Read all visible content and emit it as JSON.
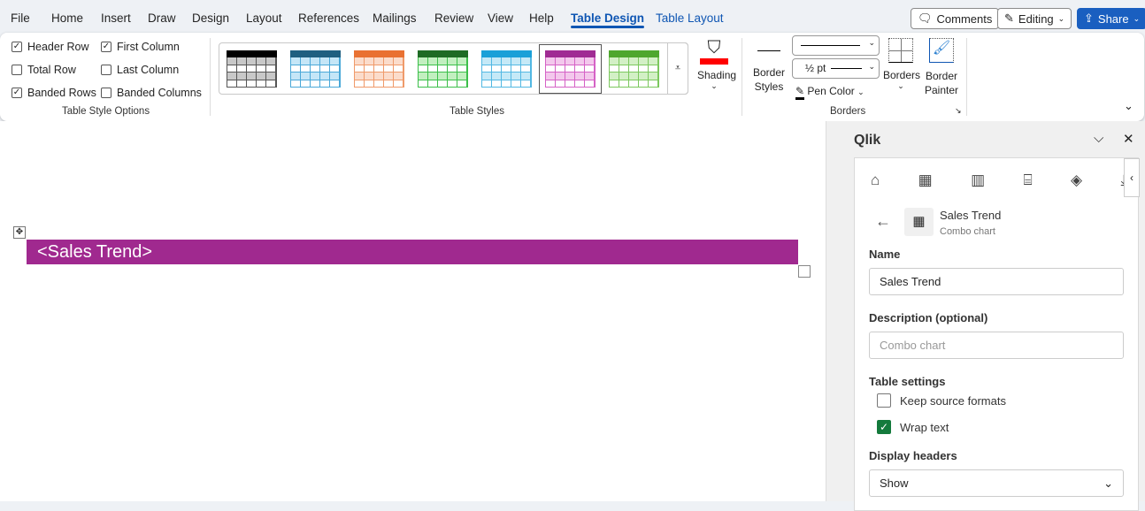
{
  "tabs": [
    "File",
    "Home",
    "Insert",
    "Draw",
    "Design",
    "Layout",
    "References",
    "Mailings",
    "Review",
    "View",
    "Help",
    "Table Design",
    "Table Layout"
  ],
  "active_tab": "Table Design",
  "top_buttons": {
    "comments": "Comments",
    "editing": "Editing",
    "share": "Share"
  },
  "colors": {
    "accent": "#0f56b3",
    "share_bg": "#1a5fc0",
    "table_header": "#a0298f",
    "qlik_check": "#147a3c"
  },
  "table_style_options": {
    "group_label": "Table Style Options",
    "options": [
      {
        "label": "Header Row",
        "checked": true
      },
      {
        "label": "First Column",
        "checked": true
      },
      {
        "label": "Total Row",
        "checked": false
      },
      {
        "label": "Last Column",
        "checked": false
      },
      {
        "label": "Banded Rows",
        "checked": true
      },
      {
        "label": "Banded Columns",
        "checked": false
      }
    ]
  },
  "table_styles": {
    "group_label": "Table Styles",
    "styles": [
      {
        "header": "#000000",
        "band": "#c8c8c8",
        "border": "#555555"
      },
      {
        "header": "#1f5f80",
        "band": "#c5e6f7",
        "border": "#4aa8d8"
      },
      {
        "header": "#e97132",
        "band": "#fbdccb",
        "border": "#ef9a6a"
      },
      {
        "header": "#1e6b24",
        "band": "#c2efc0",
        "border": "#3cbf4a"
      },
      {
        "header": "#1aa0d8",
        "band": "#c5e9f7",
        "border": "#52b8e3"
      },
      {
        "header": "#a02b93",
        "band": "#f3c8ec",
        "border": "#d562c6",
        "selected": true
      },
      {
        "header": "#4ea72e",
        "band": "#d3f0c6",
        "border": "#7cc85e"
      }
    ]
  },
  "shading": {
    "label": "Shading",
    "color": "#ff0000"
  },
  "borders": {
    "group_label": "Borders",
    "border_styles": "Border Styles",
    "weight": "½ pt",
    "pen_color": "Pen Color",
    "borders_btn": "Borders",
    "border_painter": "Border Painter"
  },
  "document": {
    "table_header_text": "<Sales Trend>"
  },
  "qlik": {
    "title": "Qlik",
    "object_title": "Sales Trend",
    "object_type": "Combo chart",
    "name_label": "Name",
    "name_value": "Sales Trend",
    "description_label": "Description (optional)",
    "description_placeholder": "Combo chart",
    "table_settings_label": "Table settings",
    "keep_source_formats": {
      "label": "Keep source formats",
      "checked": false
    },
    "wrap_text": {
      "label": "Wrap text",
      "checked": true
    },
    "display_headers_label": "Display headers",
    "display_headers_value": "Show",
    "nav_icons": [
      "home-icon",
      "table-icon",
      "chart-icon",
      "variable-icon",
      "layers-icon",
      "download-icon"
    ]
  }
}
